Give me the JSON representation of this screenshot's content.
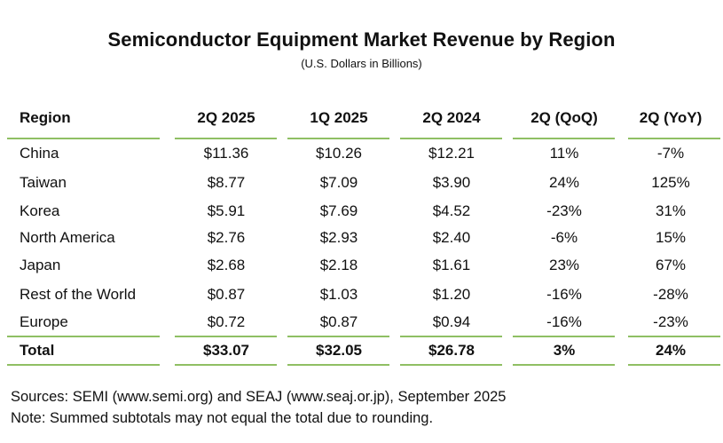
{
  "title": "Semiconductor Equipment Market Revenue by Region",
  "subtitle": "(U.S. Dollars in Billions)",
  "table": {
    "headers": [
      "Region",
      "2Q 2025",
      "1Q 2025",
      "2Q 2024",
      "2Q (QoQ)",
      "2Q (YoY)"
    ],
    "rows": [
      [
        "China",
        "$11.36",
        "$10.26",
        "$12.21",
        "11%",
        "-7%"
      ],
      [
        "Taiwan",
        "$8.77",
        "$7.09",
        "$3.90",
        "24%",
        "125%"
      ],
      [
        "Korea",
        "$5.91",
        "$7.69",
        "$4.52",
        "-23%",
        "31%"
      ],
      [
        "North America",
        "$2.76",
        "$2.93",
        "$2.40",
        "-6%",
        "15%"
      ],
      [
        "Japan",
        "$2.68",
        "$2.18",
        "$1.61",
        "23%",
        "67%"
      ],
      [
        "Rest of the World",
        "$0.87",
        "$1.03",
        "$1.20",
        "-16%",
        "-28%"
      ],
      [
        "Europe",
        "$0.72",
        "$0.87",
        "$0.94",
        "-16%",
        "-23%"
      ]
    ],
    "total": [
      "Total",
      "$33.07",
      "$32.05",
      "$26.78",
      "3%",
      "24%"
    ]
  },
  "footer": {
    "sources": "Sources: SEMI (www.semi.org) and SEAJ (www.seaj.or.jp), September 2025",
    "note": "Note: Summed subtotals may not equal the total due to rounding."
  },
  "colors": {
    "rule_line": "#8fbf63",
    "text": "#111111"
  }
}
